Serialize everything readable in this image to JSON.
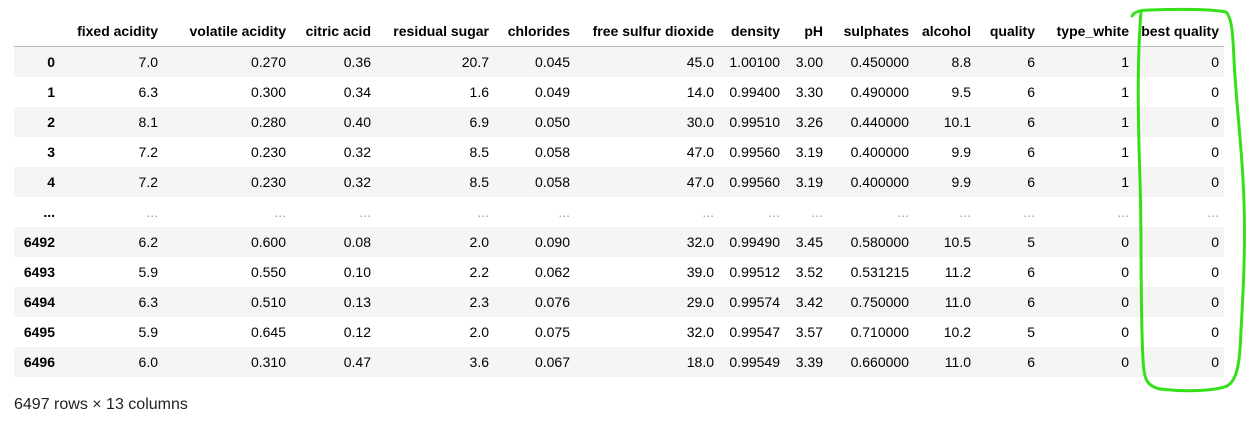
{
  "columns": [
    "",
    "fixed acidity",
    "volatile acidity",
    "citric acid",
    "residual sugar",
    "chlorides",
    "free sulfur dioxide",
    "density",
    "pH",
    "sulphates",
    "alcohol",
    "quality",
    "type_white",
    "best quality"
  ],
  "rows": [
    [
      "0",
      "7.0",
      "0.270",
      "0.36",
      "20.7",
      "0.045",
      "45.0",
      "1.00100",
      "3.00",
      "0.450000",
      "8.8",
      "6",
      "1",
      "0"
    ],
    [
      "1",
      "6.3",
      "0.300",
      "0.34",
      "1.6",
      "0.049",
      "14.0",
      "0.99400",
      "3.30",
      "0.490000",
      "9.5",
      "6",
      "1",
      "0"
    ],
    [
      "2",
      "8.1",
      "0.280",
      "0.40",
      "6.9",
      "0.050",
      "30.0",
      "0.99510",
      "3.26",
      "0.440000",
      "10.1",
      "6",
      "1",
      "0"
    ],
    [
      "3",
      "7.2",
      "0.230",
      "0.32",
      "8.5",
      "0.058",
      "47.0",
      "0.99560",
      "3.19",
      "0.400000",
      "9.9",
      "6",
      "1",
      "0"
    ],
    [
      "4",
      "7.2",
      "0.230",
      "0.32",
      "8.5",
      "0.058",
      "47.0",
      "0.99560",
      "3.19",
      "0.400000",
      "9.9",
      "6",
      "1",
      "0"
    ],
    [
      "...",
      "...",
      "...",
      "...",
      "...",
      "...",
      "...",
      "...",
      "...",
      "...",
      "...",
      "...",
      "...",
      "..."
    ],
    [
      "6492",
      "6.2",
      "0.600",
      "0.08",
      "2.0",
      "0.090",
      "32.0",
      "0.99490",
      "3.45",
      "0.580000",
      "10.5",
      "5",
      "0",
      "0"
    ],
    [
      "6493",
      "5.9",
      "0.550",
      "0.10",
      "2.2",
      "0.062",
      "39.0",
      "0.99512",
      "3.52",
      "0.531215",
      "11.2",
      "6",
      "0",
      "0"
    ],
    [
      "6494",
      "6.3",
      "0.510",
      "0.13",
      "2.3",
      "0.076",
      "29.0",
      "0.99574",
      "3.42",
      "0.750000",
      "11.0",
      "6",
      "0",
      "0"
    ],
    [
      "6495",
      "5.9",
      "0.645",
      "0.12",
      "2.0",
      "0.075",
      "32.0",
      "0.99547",
      "3.57",
      "0.710000",
      "10.2",
      "5",
      "0",
      "0"
    ],
    [
      "6496",
      "6.0",
      "0.310",
      "0.47",
      "3.6",
      "0.067",
      "18.0",
      "0.99549",
      "3.39",
      "0.660000",
      "11.0",
      "6",
      "0",
      "0"
    ]
  ],
  "footer": "6497 rows × 13 columns",
  "colors": {
    "highlight": "#35e01a",
    "header_border": "#bdbdbd",
    "stripe": "#f5f5f5"
  }
}
